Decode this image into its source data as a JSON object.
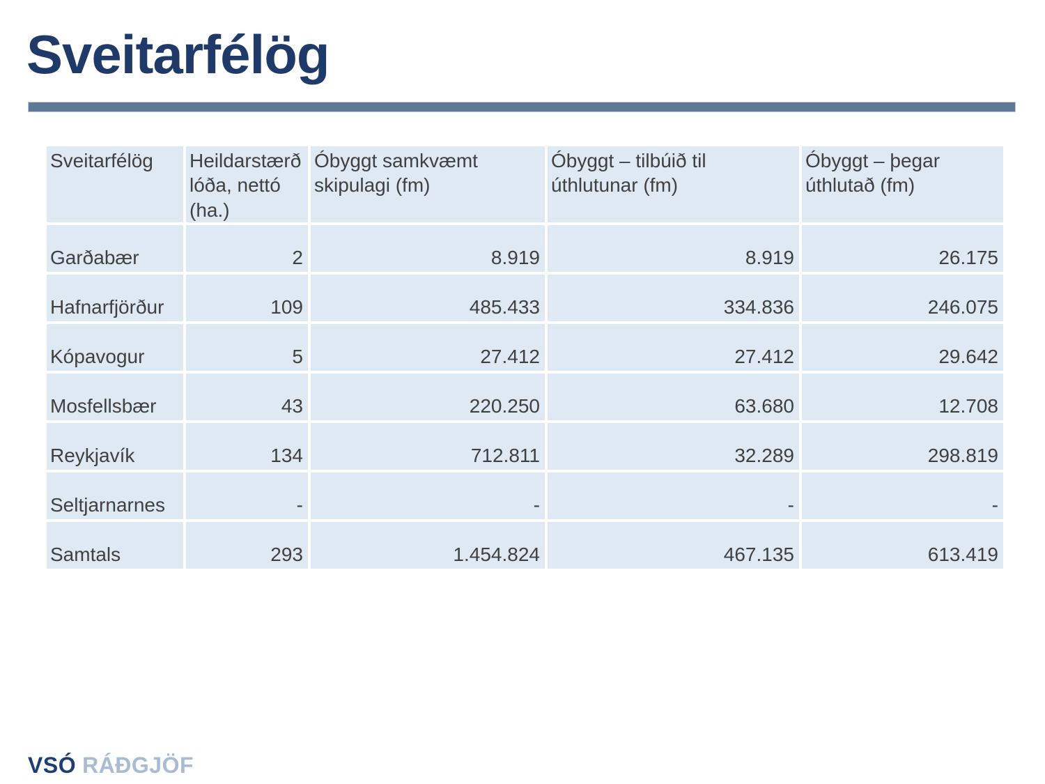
{
  "slide": {
    "title": "Sveitarfélög"
  },
  "colors": {
    "title": "#1f3a68",
    "underline_bar": "#5f7896",
    "cell_background": "#dfe9f4",
    "cell_text": "#404040",
    "logo_primary": "#1d3e71",
    "logo_secondary": "#a9bcd4"
  },
  "table": {
    "columns": [
      "Sveitarfélög",
      "Heildarstærð lóða, nettó (ha.)",
      "Óbyggt samkvæmt skipulagi (fm)",
      "Óbyggt – tilbúið til úthlutunar (fm)",
      "Óbyggt – þegar úthlutað (fm)"
    ],
    "rows": [
      {
        "name": "Garðabær",
        "values": [
          "2",
          "8.919",
          "8.919",
          "26.175"
        ]
      },
      {
        "name": "Hafnarfjörður",
        "values": [
          "109",
          "485.433",
          "334.836",
          "246.075"
        ]
      },
      {
        "name": "Kópavogur",
        "values": [
          "5",
          "27.412",
          "27.412",
          "29.642"
        ]
      },
      {
        "name": "Mosfellsbær",
        "values": [
          "43",
          "220.250",
          "63.680",
          "12.708"
        ]
      },
      {
        "name": "Reykjavík",
        "values": [
          "134",
          "712.811",
          "32.289",
          "298.819"
        ]
      },
      {
        "name": "Seltjarnarnes",
        "values": [
          "-",
          "-",
          "-",
          "-"
        ]
      },
      {
        "name": "Samtals",
        "values": [
          "293",
          "1.454.824",
          "467.135",
          "613.419"
        ]
      }
    ]
  },
  "footer": {
    "logo_primary": "VSÓ",
    "logo_secondary": "RÁÐGJÖF"
  }
}
